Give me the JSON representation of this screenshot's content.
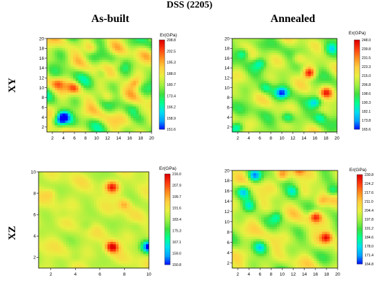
{
  "figure": {
    "title": "DSS (2205)",
    "col_labels": [
      "As-built",
      "Annealed"
    ],
    "row_labels": [
      "XY",
      "XZ"
    ]
  },
  "palette": [
    "#0000ff",
    "#00a0ff",
    "#00e0f0",
    "#00ff90",
    "#40e040",
    "#a0f040",
    "#e8f040",
    "#ffd040",
    "#ff9020",
    "#ff4010",
    "#e00000"
  ],
  "chart_data": [
    {
      "type": "heatmap",
      "panel": "As-built XY",
      "colorbar_title": "Er(GPa)",
      "colorbar_ticks": [
        "208.8",
        "202.5",
        "195.3",
        "188.0",
        "180.7",
        "173.4",
        "166.2",
        "158.9",
        "151.6"
      ],
      "vmin": 151.6,
      "vmax": 208.8,
      "xlim": [
        1,
        20
      ],
      "ylim": [
        1,
        20
      ],
      "xticks": [
        2,
        4,
        6,
        8,
        10,
        12,
        14,
        16,
        18,
        20
      ],
      "yticks": [
        2,
        4,
        6,
        8,
        10,
        12,
        14,
        16,
        18,
        20
      ],
      "seed": 11,
      "base": 182,
      "amp": 14,
      "hotspots": [
        [
          4,
          4,
          -30
        ],
        [
          3,
          3,
          -18
        ],
        [
          14,
          15,
          12
        ],
        [
          17,
          11,
          14
        ],
        [
          6,
          10,
          15
        ],
        [
          12,
          8,
          10
        ],
        [
          9,
          18,
          10
        ],
        [
          3,
          11,
          12
        ],
        [
          18,
          5,
          8
        ],
        [
          11,
          13,
          -10
        ]
      ]
    },
    {
      "type": "heatmap",
      "panel": "Annealed XY",
      "colorbar_title": "Er(GPa)",
      "colorbar_ticks": [
        "248.0",
        "239.8",
        "231.5",
        "223.3",
        "215.0",
        "206.8",
        "198.6",
        "190.3",
        "182.1",
        "173.8",
        "165.6"
      ],
      "vmin": 165.6,
      "vmax": 248.0,
      "xlim": [
        1,
        20
      ],
      "ylim": [
        1,
        20
      ],
      "xticks": [
        2,
        4,
        6,
        8,
        10,
        12,
        14,
        16,
        18,
        20
      ],
      "yticks": [
        2,
        4,
        6,
        8,
        10,
        12,
        14,
        16,
        18,
        20
      ],
      "seed": 23,
      "base": 208,
      "amp": 13,
      "hotspots": [
        [
          15,
          13,
          40
        ],
        [
          18,
          9,
          30
        ],
        [
          10,
          9,
          -32
        ],
        [
          16,
          7,
          -25
        ],
        [
          3,
          17,
          -24
        ],
        [
          6,
          15,
          -20
        ],
        [
          11,
          4,
          -22
        ],
        [
          13,
          16,
          14
        ],
        [
          17,
          4,
          -18
        ],
        [
          2,
          2,
          -24
        ],
        [
          7,
          10,
          -16
        ],
        [
          19,
          18,
          -20
        ]
      ]
    },
    {
      "type": "heatmap",
      "panel": "As-built XZ",
      "colorbar_title": "Er(GPa)",
      "colorbar_ticks": [
        "216.0",
        "207.9",
        "199.7",
        "191.6",
        "183.4",
        "175.3",
        "167.1",
        "159.0",
        "150.8"
      ],
      "vmin": 150.8,
      "vmax": 216.0,
      "xlim": [
        1,
        10
      ],
      "ylim": [
        1,
        10
      ],
      "xticks": [
        2,
        4,
        6,
        8,
        10
      ],
      "yticks": [
        2,
        4,
        6,
        8,
        10
      ],
      "seed": 7,
      "base": 188,
      "amp": 6,
      "hotspots": [
        [
          7,
          3,
          30
        ],
        [
          7,
          8.6,
          24
        ],
        [
          8,
          7,
          12
        ],
        [
          2,
          8,
          8
        ],
        [
          10,
          3,
          -38
        ],
        [
          4,
          2,
          -4
        ],
        [
          5,
          5,
          -6
        ],
        [
          9,
          5,
          -4
        ],
        [
          3,
          6,
          -4
        ]
      ]
    },
    {
      "type": "heatmap",
      "panel": "Annealed XZ",
      "colorbar_title": "Er(GPa)",
      "colorbar_ticks": [
        "230.8",
        "224.2",
        "217.6",
        "211.0",
        "204.4",
        "197.8",
        "191.2",
        "184.6",
        "178.0",
        "171.4",
        "164.8"
      ],
      "vmin": 164.8,
      "vmax": 230.8,
      "xlim": [
        1,
        20
      ],
      "ylim": [
        1,
        20
      ],
      "xticks": [
        2,
        4,
        6,
        8,
        10,
        12,
        14,
        16,
        18,
        20
      ],
      "yticks": [
        2,
        4,
        6,
        8,
        10,
        12,
        14,
        16,
        18,
        20
      ],
      "seed": 41,
      "base": 201,
      "amp": 11,
      "hotspots": [
        [
          16,
          11,
          26
        ],
        [
          18,
          7,
          28
        ],
        [
          10,
          19,
          18
        ],
        [
          13,
          20,
          16
        ],
        [
          17,
          14,
          14
        ],
        [
          5,
          19,
          -24
        ],
        [
          3,
          16,
          -20
        ],
        [
          12,
          16,
          -18
        ],
        [
          4,
          13,
          -16
        ],
        [
          19,
          16,
          -18
        ],
        [
          6,
          5,
          -16
        ],
        [
          9,
          11,
          -14
        ]
      ]
    }
  ]
}
